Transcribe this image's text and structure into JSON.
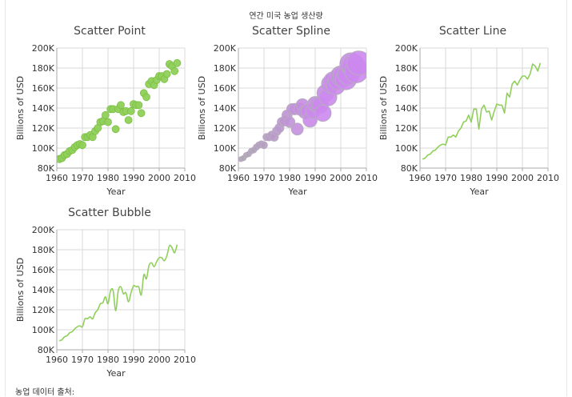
{
  "page": {
    "title": "연간 미국 농업 생산량",
    "footer": "농업 데이터 출처:"
  },
  "chart_data": [
    {
      "type": "scatter",
      "title": "Scatter Point",
      "xlabel": "Year",
      "ylabel": "Billions of USD",
      "xlim": [
        1960,
        2010
      ],
      "ylim": [
        80000,
        200000
      ],
      "xticks": [
        "1960",
        "1970",
        "1980",
        "1990",
        "2000",
        "2010"
      ],
      "yticks": [
        "80K",
        "100K",
        "120K",
        "140K",
        "160K",
        "180K",
        "200K"
      ],
      "grid": true,
      "style": "points",
      "color": "#90d05a",
      "x": [
        1961,
        1962,
        1963,
        1964,
        1965,
        1966,
        1967,
        1968,
        1969,
        1970,
        1971,
        1972,
        1973,
        1974,
        1975,
        1976,
        1977,
        1978,
        1979,
        1980,
        1981,
        1982,
        1983,
        1984,
        1985,
        1986,
        1987,
        1988,
        1989,
        1990,
        1991,
        1992,
        1993,
        1994,
        1995,
        1996,
        1997,
        1998,
        1999,
        2000,
        2001,
        2002,
        2003,
        2004,
        2005,
        2006,
        2007
      ],
      "y": [
        89000,
        90000,
        93000,
        94000,
        97000,
        98000,
        101000,
        103000,
        104000,
        103000,
        111000,
        111000,
        113000,
        111000,
        117000,
        120000,
        126000,
        127000,
        133000,
        126000,
        139000,
        139000,
        119000,
        139000,
        143000,
        136000,
        137000,
        128000,
        137000,
        144000,
        143000,
        143000,
        135000,
        155000,
        151000,
        164000,
        167000,
        163000,
        168000,
        172000,
        172000,
        169000,
        174000,
        184000,
        182000,
        177000,
        185000
      ]
    },
    {
      "type": "scatter",
      "title": "Scatter Spline",
      "xlabel": "Year",
      "ylabel": "Billions of USD",
      "xlim": [
        1960,
        2010
      ],
      "ylim": [
        80000,
        200000
      ],
      "xticks": [
        "1960",
        "1970",
        "1980",
        "1990",
        "2000",
        "2010"
      ],
      "yticks": [
        "80K",
        "100K",
        "120K",
        "140K",
        "160K",
        "180K",
        "200K"
      ],
      "grid": true,
      "style": "bubbles",
      "color_start": "#a9a9a9",
      "color_end": "#cc88ee",
      "x": [
        1961,
        1962,
        1963,
        1964,
        1965,
        1966,
        1967,
        1968,
        1969,
        1970,
        1971,
        1972,
        1973,
        1974,
        1975,
        1976,
        1977,
        1978,
        1979,
        1980,
        1981,
        1982,
        1983,
        1984,
        1985,
        1986,
        1987,
        1988,
        1989,
        1990,
        1991,
        1992,
        1993,
        1994,
        1995,
        1996,
        1997,
        1998,
        1999,
        2000,
        2001,
        2002,
        2003,
        2004,
        2005,
        2006,
        2007
      ],
      "y": [
        89000,
        90000,
        93000,
        94000,
        97000,
        98000,
        101000,
        103000,
        104000,
        103000,
        111000,
        111000,
        113000,
        111000,
        117000,
        120000,
        126000,
        127000,
        133000,
        126000,
        139000,
        139000,
        119000,
        139000,
        143000,
        136000,
        137000,
        128000,
        137000,
        144000,
        143000,
        143000,
        135000,
        155000,
        151000,
        164000,
        167000,
        163000,
        168000,
        172000,
        172000,
        169000,
        174000,
        184000,
        182000,
        177000,
        185000
      ]
    },
    {
      "type": "line",
      "title": "Scatter Line",
      "xlabel": "Year",
      "ylabel": "Billions of USD",
      "xlim": [
        1960,
        2010
      ],
      "ylim": [
        80000,
        200000
      ],
      "xticks": [
        "1960",
        "1970",
        "1980",
        "1990",
        "2000",
        "2010"
      ],
      "yticks": [
        "80K",
        "100K",
        "120K",
        "140K",
        "160K",
        "180K",
        "200K"
      ],
      "grid": true,
      "style": "line",
      "color": "#90d05a",
      "x": [
        1961,
        1962,
        1963,
        1964,
        1965,
        1966,
        1967,
        1968,
        1969,
        1970,
        1971,
        1972,
        1973,
        1974,
        1975,
        1976,
        1977,
        1978,
        1979,
        1980,
        1981,
        1982,
        1983,
        1984,
        1985,
        1986,
        1987,
        1988,
        1989,
        1990,
        1991,
        1992,
        1993,
        1994,
        1995,
        1996,
        1997,
        1998,
        1999,
        2000,
        2001,
        2002,
        2003,
        2004,
        2005,
        2006,
        2007
      ],
      "y": [
        89000,
        90000,
        93000,
        94000,
        97000,
        98000,
        101000,
        103000,
        104000,
        103000,
        111000,
        111000,
        113000,
        111000,
        117000,
        120000,
        126000,
        127000,
        133000,
        126000,
        139000,
        139000,
        119000,
        139000,
        143000,
        136000,
        137000,
        128000,
        137000,
        144000,
        143000,
        143000,
        135000,
        155000,
        151000,
        164000,
        167000,
        163000,
        168000,
        172000,
        172000,
        169000,
        174000,
        184000,
        182000,
        177000,
        185000
      ]
    },
    {
      "type": "line",
      "title": "Scatter Bubble",
      "xlabel": "Year",
      "ylabel": "Billions of USD",
      "xlim": [
        1960,
        2010
      ],
      "ylim": [
        80000,
        200000
      ],
      "xticks": [
        "1960",
        "1970",
        "1980",
        "1990",
        "2000",
        "2010"
      ],
      "yticks": [
        "80K",
        "100K",
        "120K",
        "140K",
        "160K",
        "180K",
        "200K"
      ],
      "grid": true,
      "style": "spline",
      "color": "#90d05a",
      "x": [
        1961,
        1962,
        1963,
        1964,
        1965,
        1966,
        1967,
        1968,
        1969,
        1970,
        1971,
        1972,
        1973,
        1974,
        1975,
        1976,
        1977,
        1978,
        1979,
        1980,
        1981,
        1982,
        1983,
        1984,
        1985,
        1986,
        1987,
        1988,
        1989,
        1990,
        1991,
        1992,
        1993,
        1994,
        1995,
        1996,
        1997,
        1998,
        1999,
        2000,
        2001,
        2002,
        2003,
        2004,
        2005,
        2006,
        2007
      ],
      "y": [
        89000,
        90000,
        93000,
        94000,
        97000,
        98000,
        101000,
        103000,
        104000,
        103000,
        111000,
        111000,
        113000,
        111000,
        117000,
        120000,
        126000,
        127000,
        133000,
        126000,
        139000,
        139000,
        119000,
        139000,
        143000,
        136000,
        137000,
        128000,
        137000,
        144000,
        143000,
        143000,
        135000,
        155000,
        151000,
        164000,
        167000,
        163000,
        168000,
        172000,
        172000,
        169000,
        174000,
        184000,
        182000,
        177000,
        185000
      ]
    }
  ]
}
